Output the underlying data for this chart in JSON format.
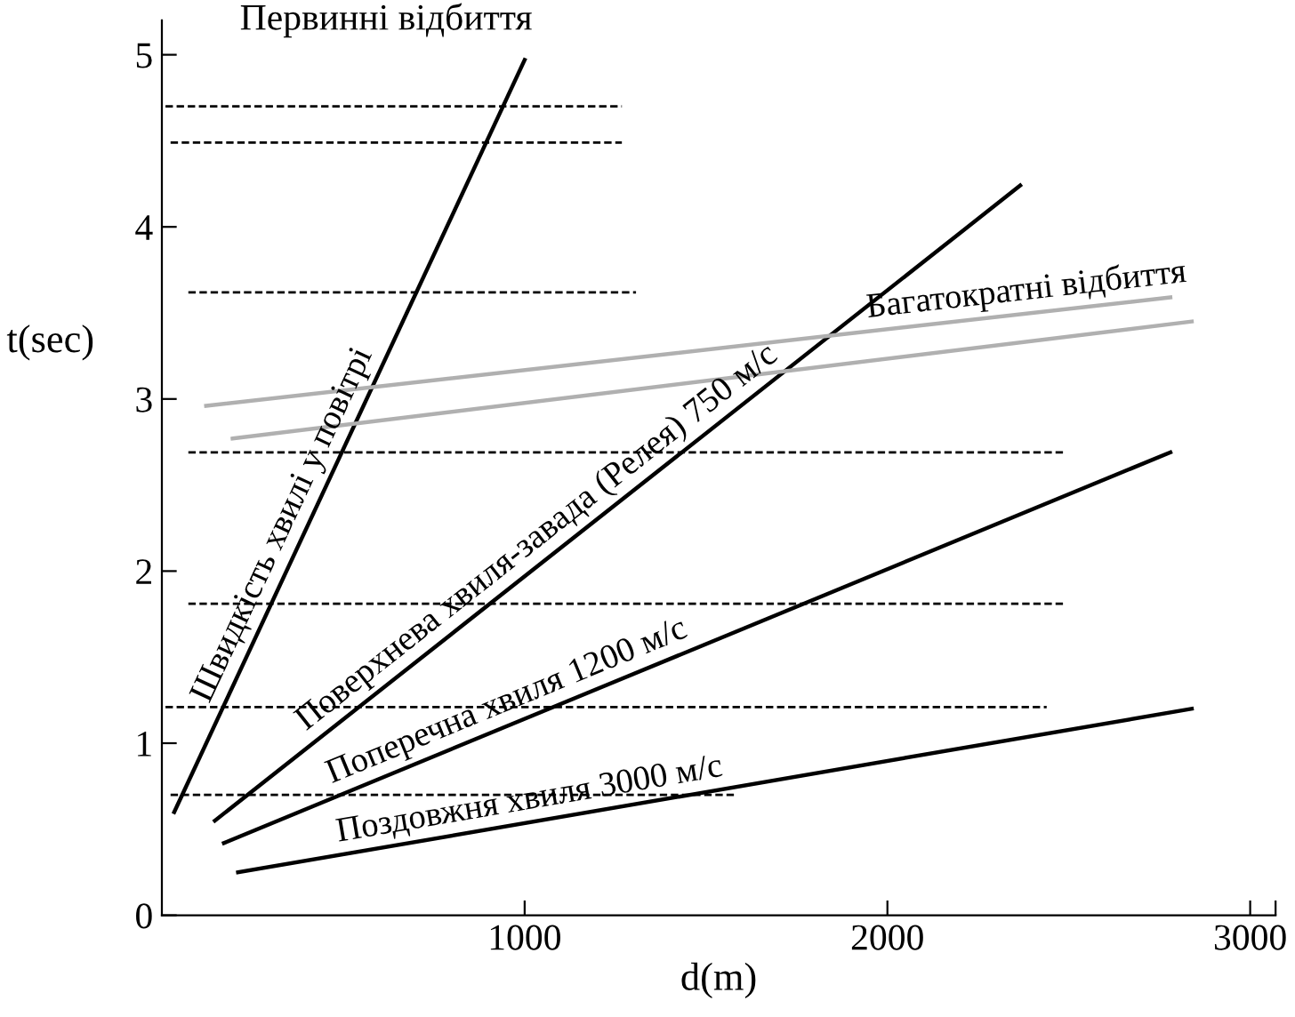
{
  "chart_data": {
    "type": "line",
    "xlabel": "d(m)",
    "ylabel": "t(sec)",
    "xlim": [
      0,
      3070
    ],
    "ylim": [
      0,
      5.2
    ],
    "xticks": [
      1000,
      2000,
      3000,
      {
        "value": 3070,
        "label": null
      }
    ],
    "yticks": [
      0,
      1,
      2,
      3,
      4,
      5
    ],
    "grid": false,
    "legend": false,
    "marker": "none",
    "series": [
      {
        "color": "#000000",
        "line_style": "solid",
        "x": [
          34,
          1000
        ],
        "values": [
          0.6,
          4.97
        ]
      },
      {
        "color": "#000000",
        "line_style": "solid",
        "x": [
          146,
          2366
        ],
        "values": [
          0.55,
          4.24
        ]
      },
      {
        "color": "#000000",
        "line_style": "solid",
        "x": [
          171,
          2780
        ],
        "values": [
          0.42,
          2.69
        ]
      },
      {
        "color": "#000000",
        "line_style": "solid",
        "x": [
          210,
          2839
        ],
        "values": [
          0.25,
          1.2
        ]
      },
      {
        "color": "#b0b0b0",
        "line_style": "solid",
        "x": [
          122,
          2780
        ],
        "values": [
          2.96,
          3.59
        ]
      },
      {
        "color": "#b0b0b0",
        "line_style": "solid",
        "x": [
          195,
          2839
        ],
        "values": [
          2.77,
          3.45
        ]
      },
      {
        "color": "#000000",
        "line_style": "dashed",
        "x": [
          10,
          1268
        ],
        "values": [
          4.7,
          4.7
        ]
      },
      {
        "color": "#000000",
        "line_style": "dashed",
        "x": [
          24,
          1268
        ],
        "values": [
          4.49,
          4.49
        ]
      },
      {
        "color": "#000000",
        "line_style": "dashed",
        "x": [
          73,
          1307
        ],
        "values": [
          3.62,
          3.62
        ]
      },
      {
        "color": "#000000",
        "line_style": "dashed",
        "x": [
          73,
          2488
        ],
        "values": [
          2.69,
          2.69
        ]
      },
      {
        "color": "#000000",
        "line_style": "dashed",
        "x": [
          73,
          2488
        ],
        "values": [
          1.81,
          1.81
        ]
      },
      {
        "color": "#000000",
        "line_style": "dashed",
        "x": [
          10,
          2439
        ],
        "values": [
          1.21,
          1.21
        ]
      },
      {
        "color": "#000000",
        "line_style": "dashed",
        "x": [
          24,
          1585
        ],
        "values": [
          0.7,
          0.7
        ]
      }
    ],
    "annotations": [
      "Первинні відбиття",
      {
        "text": "Швидкість хвилі у повітрі",
        "x": 390,
        "y": 2.21
      },
      {
        "text": "Поверхнева хвиля-завада (Релея) 750 м/с",
        "x": 1073,
        "y": 2.09
      },
      {
        "text": "Багатократні відбиття",
        "x": 2390,
        "y": 3.5
      },
      {
        "text": "Поперечна хвиля 1200 м/с",
        "x": 975,
        "y": 1.12
      },
      {
        "text": "Поздовжня хвиля 3000 м/с",
        "x": 1024,
        "y": 0.54
      }
    ]
  }
}
